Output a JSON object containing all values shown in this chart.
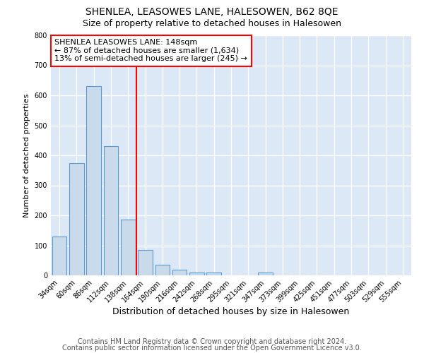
{
  "title": "SHENLEA, LEASOWES LANE, HALESOWEN, B62 8QE",
  "subtitle": "Size of property relative to detached houses in Halesowen",
  "xlabel": "Distribution of detached houses by size in Halesowen",
  "ylabel": "Number of detached properties",
  "categories": [
    "34sqm",
    "60sqm",
    "86sqm",
    "112sqm",
    "138sqm",
    "164sqm",
    "190sqm",
    "216sqm",
    "242sqm",
    "268sqm",
    "295sqm",
    "321sqm",
    "347sqm",
    "373sqm",
    "399sqm",
    "425sqm",
    "451sqm",
    "477sqm",
    "503sqm",
    "529sqm",
    "555sqm"
  ],
  "values": [
    130,
    375,
    630,
    430,
    185,
    85,
    35,
    18,
    10,
    10,
    0,
    0,
    10,
    0,
    0,
    0,
    0,
    0,
    0,
    0,
    0
  ],
  "bar_color": "#c9daea",
  "bar_edge_color": "#5b9bd5",
  "ylim": [
    0,
    800
  ],
  "yticks": [
    0,
    100,
    200,
    300,
    400,
    500,
    600,
    700,
    800
  ],
  "red_line_x": 4.5,
  "annotation_title": "SHENLEA LEASOWES LANE: 148sqm",
  "annotation_line1": "← 87% of detached houses are smaller (1,634)",
  "annotation_line2": "13% of semi-detached houses are larger (245) →",
  "footer1": "Contains HM Land Registry data © Crown copyright and database right 2024.",
  "footer2": "Contains public sector information licensed under the Open Government Licence v3.0.",
  "fig_background_color": "#ffffff",
  "plot_background_color": "#dce8f5",
  "grid_color": "#ffffff",
  "title_fontsize": 10,
  "subtitle_fontsize": 9,
  "xlabel_fontsize": 9,
  "ylabel_fontsize": 8,
  "tick_fontsize": 7,
  "footer_fontsize": 7,
  "annotation_fontsize": 8
}
